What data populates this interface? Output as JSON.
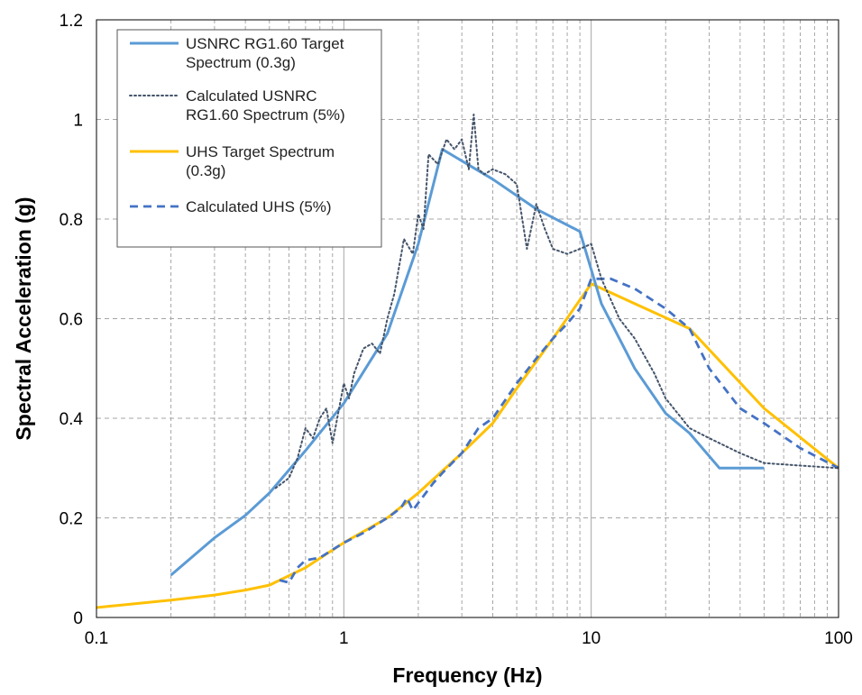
{
  "chart_data": {
    "type": "line",
    "title": "",
    "xlabel": "Frequency (Hz)",
    "ylabel": "Spectral Acceleration (g)",
    "xscale": "log",
    "xlim": [
      0.1,
      100
    ],
    "ylim": [
      0,
      1.2
    ],
    "grid": true,
    "legend_position": "top-left",
    "x_ticks": [
      "0.1",
      "1",
      "10",
      "100"
    ],
    "y_ticks": [
      "0",
      "0.2",
      "0.4",
      "0.6",
      "0.8",
      "1",
      "1.2"
    ],
    "series": [
      {
        "name": "USNRC RG1.60 Target Spectrum (0.3g)",
        "legend_lines": [
          "USNRC RG1.60 Target",
          "Spectrum (0.3g)"
        ],
        "color": "#5b9bd5",
        "style": "solid",
        "x": [
          0.2,
          0.3,
          0.4,
          0.5,
          0.7,
          1.0,
          1.5,
          2.0,
          2.5,
          4.0,
          6.0,
          9.0,
          11.0,
          15.0,
          20.0,
          25.0,
          33.0,
          50.0
        ],
        "y": [
          0.085,
          0.16,
          0.205,
          0.25,
          0.335,
          0.43,
          0.57,
          0.75,
          0.94,
          0.88,
          0.82,
          0.775,
          0.63,
          0.5,
          0.41,
          0.37,
          0.3,
          0.3
        ]
      },
      {
        "name": "Calculated USNRC RG1.60 Spectrum (5%)",
        "legend_lines": [
          "Calculated USNRC",
          "RG1.60 Spectrum (5%)"
        ],
        "color": "#44546a",
        "style": "dotted",
        "x": [
          0.53,
          0.6,
          0.65,
          0.7,
          0.75,
          0.8,
          0.85,
          0.9,
          1.0,
          1.05,
          1.1,
          1.2,
          1.3,
          1.4,
          1.5,
          1.6,
          1.75,
          1.9,
          2.0,
          2.1,
          2.2,
          2.4,
          2.6,
          2.8,
          3.0,
          3.2,
          3.35,
          3.5,
          3.7,
          4.0,
          4.5,
          5.0,
          5.5,
          6.0,
          6.5,
          7.0,
          8.0,
          9.0,
          10.0,
          11.0,
          13.0,
          15.0,
          18.0,
          20.0,
          25.0,
          30.0,
          40.0,
          50.0,
          70.0,
          100.0
        ],
        "y": [
          0.26,
          0.28,
          0.32,
          0.38,
          0.36,
          0.4,
          0.42,
          0.35,
          0.47,
          0.44,
          0.49,
          0.54,
          0.55,
          0.53,
          0.6,
          0.65,
          0.76,
          0.73,
          0.81,
          0.78,
          0.93,
          0.91,
          0.96,
          0.94,
          0.96,
          0.9,
          1.01,
          0.9,
          0.89,
          0.9,
          0.89,
          0.87,
          0.74,
          0.83,
          0.78,
          0.74,
          0.73,
          0.74,
          0.75,
          0.68,
          0.6,
          0.56,
          0.49,
          0.44,
          0.38,
          0.36,
          0.33,
          0.31,
          0.305,
          0.3
        ]
      },
      {
        "name": "UHS Target Spectrum (0.3g)",
        "legend_lines": [
          "UHS Target Spectrum",
          "(0.3g)"
        ],
        "color": "#ffc000",
        "style": "solid",
        "x": [
          0.1,
          0.2,
          0.3,
          0.4,
          0.5,
          0.7,
          1.0,
          1.5,
          2.0,
          3.0,
          4.0,
          5.0,
          7.0,
          10.0,
          15.0,
          25.0,
          50.0,
          100.0
        ],
        "y": [
          0.02,
          0.035,
          0.045,
          0.055,
          0.065,
          0.1,
          0.15,
          0.2,
          0.25,
          0.33,
          0.39,
          0.46,
          0.56,
          0.67,
          0.63,
          0.58,
          0.42,
          0.3
        ]
      },
      {
        "name": "Calculated UHS (5%)",
        "legend_lines": [
          "Calculated UHS (5%)"
        ],
        "color": "#4472c4",
        "style": "dashed",
        "x": [
          0.55,
          0.6,
          0.65,
          0.7,
          0.8,
          1.0,
          1.2,
          1.5,
          1.7,
          1.8,
          1.9,
          2.0,
          2.3,
          2.5,
          3.0,
          3.5,
          4.0,
          5.0,
          6.0,
          7.0,
          8.0,
          9.0,
          10.0,
          12.0,
          15.0,
          20.0,
          25.0,
          30.0,
          40.0,
          50.0,
          70.0,
          100.0
        ],
        "y": [
          0.075,
          0.07,
          0.1,
          0.115,
          0.12,
          0.15,
          0.17,
          0.2,
          0.22,
          0.24,
          0.215,
          0.23,
          0.27,
          0.29,
          0.33,
          0.38,
          0.4,
          0.47,
          0.52,
          0.56,
          0.59,
          0.62,
          0.68,
          0.68,
          0.66,
          0.62,
          0.58,
          0.5,
          0.42,
          0.39,
          0.34,
          0.3
        ]
      }
    ]
  }
}
